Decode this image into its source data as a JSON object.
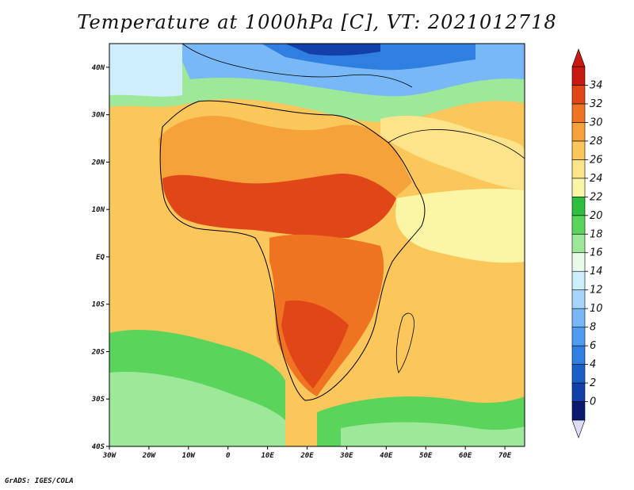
{
  "title": "Temperature at 1000hPa [C], VT: 2021012718",
  "credit": "GrADS: IGES/COLA",
  "map": {
    "lon_ticks": [
      "30W",
      "20W",
      "10W",
      "0",
      "10E",
      "20E",
      "30E",
      "40E",
      "50E",
      "60E",
      "70E"
    ],
    "lat_ticks": [
      "40S",
      "30S",
      "20S",
      "10S",
      "EQ",
      "10N",
      "20N",
      "30N",
      "40N"
    ],
    "lon_range": [
      -30,
      75
    ],
    "lat_range": [
      -40,
      45
    ]
  },
  "colorbar": {
    "labels": [
      "0",
      "2",
      "4",
      "6",
      "8",
      "10",
      "12",
      "14",
      "16",
      "18",
      "20",
      "22",
      "24",
      "26",
      "28",
      "30",
      "32",
      "34"
    ],
    "colors": [
      "#0a1a6e",
      "#123fa8",
      "#1a5fc8",
      "#2e7fe0",
      "#4f9cf0",
      "#78b8f6",
      "#a6d4fa",
      "#cfeefb",
      "#e8fbe8",
      "#9ee89a",
      "#5ad45a",
      "#2fbf3f",
      "#fbf6a6",
      "#fde38a",
      "#fbc65a",
      "#f6a23a",
      "#ef7422",
      "#e04618",
      "#c81a10"
    ],
    "min_arrow_color": "#dcdcf6",
    "max_arrow_color": "#c81a10"
  }
}
